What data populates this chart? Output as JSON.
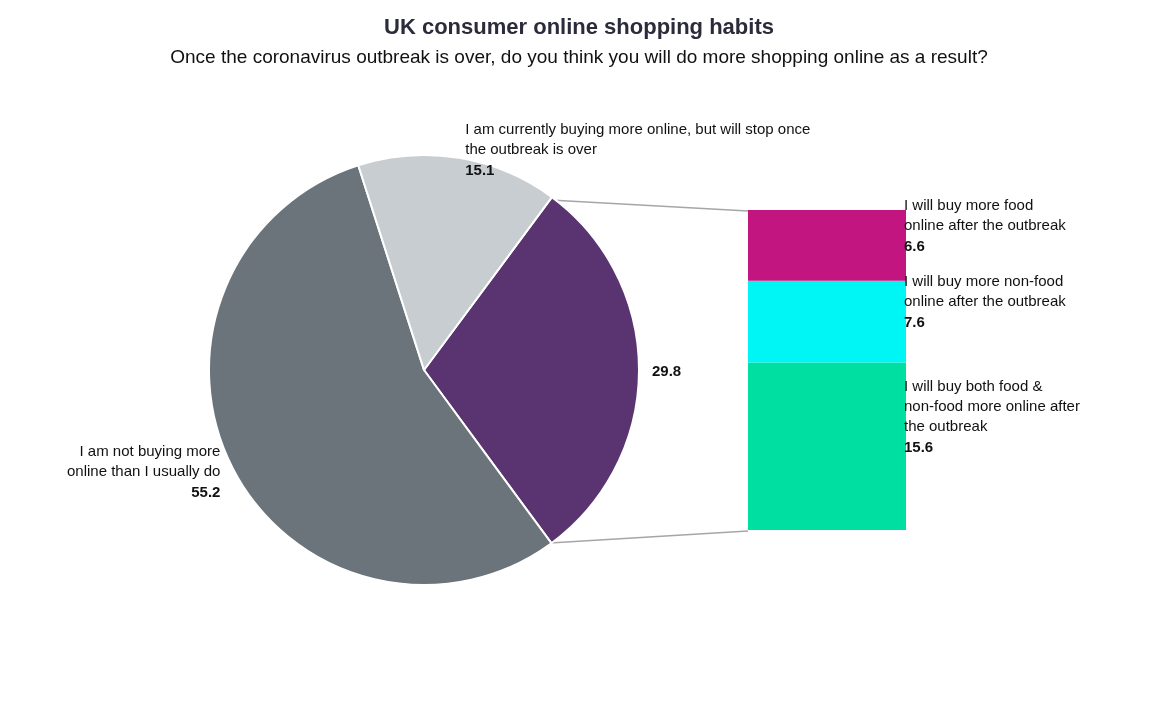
{
  "chart_data": [
    {
      "type": "pie",
      "title": "UK consumer online shopping habits",
      "subtitle": "Once the coronavirus outbreak is over, do you think you will do more shopping online as a result?",
      "categories": [
        null,
        "I am not buying more online than I usually do",
        "I am currently buying more online, but will stop once the outbreak is over"
      ],
      "values": [
        29.8,
        55.2,
        15.1
      ],
      "colors": [
        "#5a3470",
        "#6a747a",
        "#c8cdd2"
      ],
      "data_labels": true,
      "legend": false
    },
    {
      "type": "bar",
      "stacked": true,
      "categories": [
        null
      ],
      "data_labels": true,
      "legend": false,
      "series": [
        {
          "name": "I will buy both food & non-food more online after the outbreak",
          "color": "#00dfa2",
          "values": [
            15.6
          ]
        },
        {
          "name": "I will buy more non-food online after the outbreak",
          "color": "#00f5f5",
          "values": [
            7.6
          ]
        },
        {
          "name": "I will buy more food online after the outbreak",
          "color": "#c2157f",
          "values": [
            6.6
          ]
        }
      ]
    }
  ]
}
